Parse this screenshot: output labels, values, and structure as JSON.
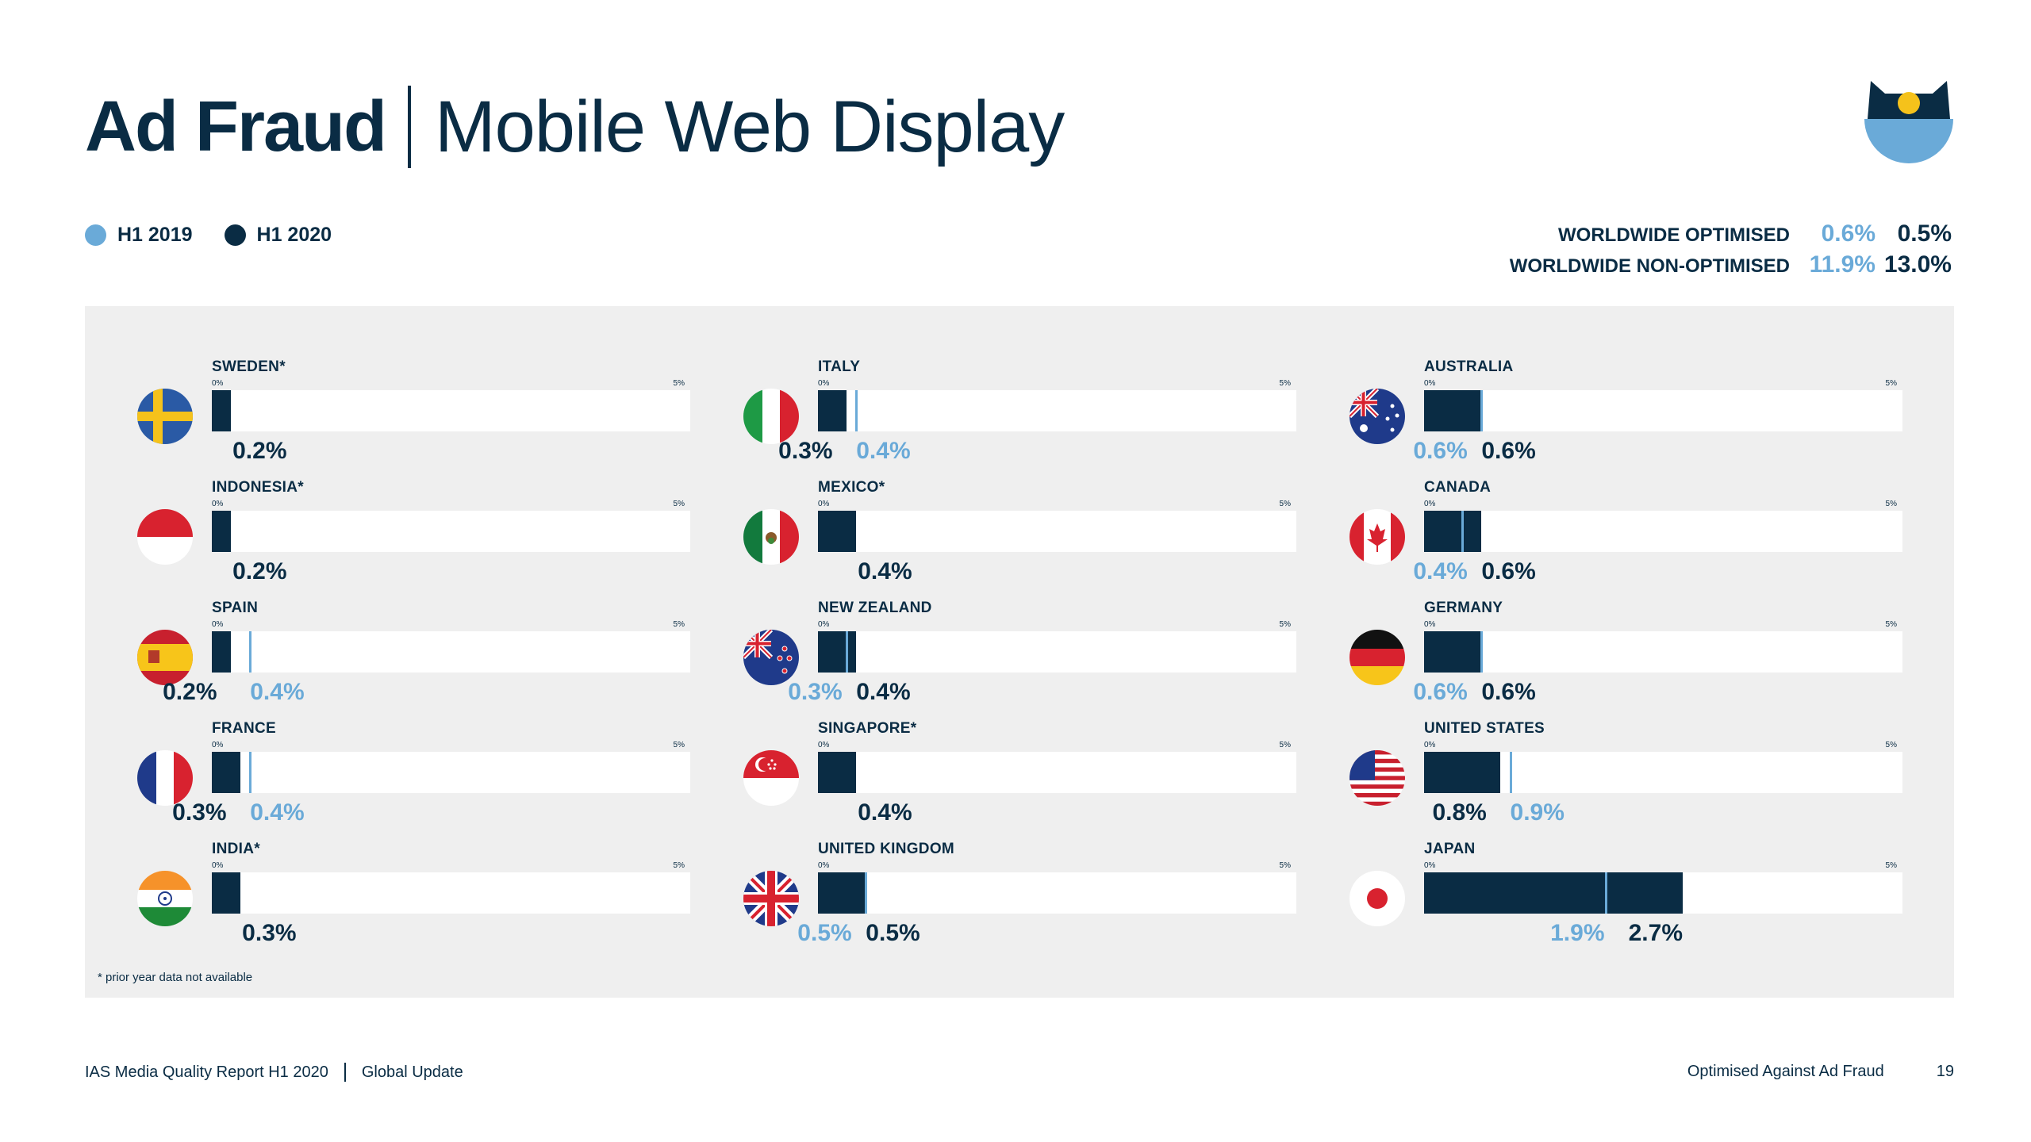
{
  "title": {
    "bold": "Ad Fraud",
    "light": "Mobile Web Display"
  },
  "legend": [
    {
      "label": "H1 2019",
      "color": "#6aaad8"
    },
    {
      "label": "H1 2020",
      "color": "#0a2c44"
    }
  ],
  "worldwide": [
    {
      "label": "WORLDWIDE OPTIMISED",
      "h1_2019": "0.6%",
      "h1_2020": "0.5%"
    },
    {
      "label": "WORLDWIDE NON-OPTIMISED",
      "h1_2019": "11.9%",
      "h1_2020": "13.0%"
    }
  ],
  "axis": {
    "min_label": "0%",
    "max_label": "5%"
  },
  "footnote": "* prior year data not available",
  "footer": {
    "report": "IAS Media Quality Report H1 2020",
    "section": "Global Update",
    "topic": "Optimised Against Ad Fraud",
    "page": "19"
  },
  "chart_data": {
    "type": "bar",
    "title": "Ad Fraud | Mobile Web Display",
    "orientation": "horizontal",
    "xlim": [
      0,
      5
    ],
    "unit": "%",
    "series_names": [
      "H1 2019",
      "H1 2020"
    ],
    "countries": [
      {
        "name": "SWEDEN*",
        "h1_2019": null,
        "h1_2020": 0.2,
        "flag": "sweden"
      },
      {
        "name": "INDONESIA*",
        "h1_2019": null,
        "h1_2020": 0.2,
        "flag": "indonesia"
      },
      {
        "name": "SPAIN",
        "h1_2019": 0.4,
        "h1_2020": 0.2,
        "flag": "spain"
      },
      {
        "name": "FRANCE",
        "h1_2019": 0.4,
        "h1_2020": 0.3,
        "flag": "france"
      },
      {
        "name": "INDIA*",
        "h1_2019": null,
        "h1_2020": 0.3,
        "flag": "india"
      },
      {
        "name": "ITALY",
        "h1_2019": 0.4,
        "h1_2020": 0.3,
        "flag": "italy"
      },
      {
        "name": "MEXICO*",
        "h1_2019": null,
        "h1_2020": 0.4,
        "flag": "mexico"
      },
      {
        "name": "NEW ZEALAND",
        "h1_2019": 0.3,
        "h1_2020": 0.4,
        "flag": "new-zealand"
      },
      {
        "name": "SINGAPORE*",
        "h1_2019": null,
        "h1_2020": 0.4,
        "flag": "singapore"
      },
      {
        "name": "UNITED KINGDOM",
        "h1_2019": 0.5,
        "h1_2020": 0.5,
        "flag": "united-kingdom"
      },
      {
        "name": "AUSTRALIA",
        "h1_2019": 0.6,
        "h1_2020": 0.6,
        "flag": "australia"
      },
      {
        "name": "CANADA",
        "h1_2019": 0.4,
        "h1_2020": 0.6,
        "flag": "canada"
      },
      {
        "name": "GERMANY",
        "h1_2019": 0.6,
        "h1_2020": 0.6,
        "flag": "germany"
      },
      {
        "name": "UNITED STATES",
        "h1_2019": 0.9,
        "h1_2020": 0.8,
        "flag": "united-states"
      },
      {
        "name": "JAPAN",
        "h1_2019": 1.9,
        "h1_2020": 2.7,
        "flag": "japan"
      }
    ]
  }
}
